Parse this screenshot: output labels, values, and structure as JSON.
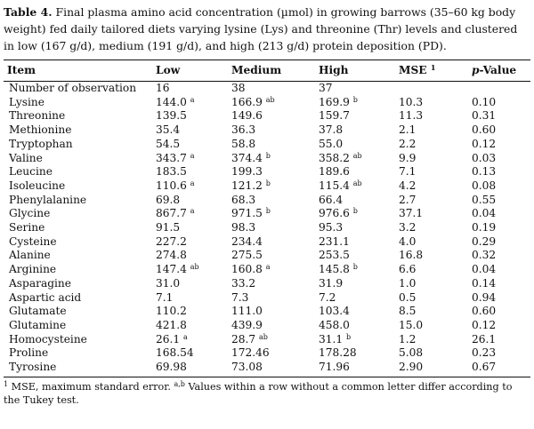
{
  "caption": {
    "label": "Table 4.",
    "text": " Final plasma amino acid concentration (µmol) in growing barrows (35–60 kg body weight) fed daily tailored diets varying lysine (Lys) and threonine (Thr) levels and clustered in low (167 g/d), medium (191 g/d), and high (213 g/d) protein deposition (PD)."
  },
  "headers": {
    "item": "Item",
    "low": "Low",
    "medium": "Medium",
    "high": "High",
    "mse": "MSE",
    "mse_sup": "1",
    "p_italic": "p",
    "p_rest": "-Value"
  },
  "rows": [
    {
      "item": "Number of observation",
      "low": "16",
      "low_sup": "",
      "med": "38",
      "med_sup": "",
      "high": "37",
      "high_sup": "",
      "mse": "",
      "p": ""
    },
    {
      "item": "Lysine",
      "low": "144.0",
      "low_sup": "a",
      "med": "166.9",
      "med_sup": "ab",
      "high": "169.9",
      "high_sup": "b",
      "mse": "10.3",
      "p": "0.10"
    },
    {
      "item": "Threonine",
      "low": "139.5",
      "low_sup": "",
      "med": "149.6",
      "med_sup": "",
      "high": "159.7",
      "high_sup": "",
      "mse": "11.3",
      "p": "0.31"
    },
    {
      "item": "Methionine",
      "low": "35.4",
      "low_sup": "",
      "med": "36.3",
      "med_sup": "",
      "high": "37.8",
      "high_sup": "",
      "mse": "2.1",
      "p": "0.60"
    },
    {
      "item": "Tryptophan",
      "low": "54.5",
      "low_sup": "",
      "med": "58.8",
      "med_sup": "",
      "high": "55.0",
      "high_sup": "",
      "mse": "2.2",
      "p": "0.12"
    },
    {
      "item": "Valine",
      "low": "343.7",
      "low_sup": "a",
      "med": "374.4",
      "med_sup": "b",
      "high": "358.2",
      "high_sup": "ab",
      "mse": "9.9",
      "p": "0.03"
    },
    {
      "item": "Leucine",
      "low": "183.5",
      "low_sup": "",
      "med": "199.3",
      "med_sup": "",
      "high": "189.6",
      "high_sup": "",
      "mse": "7.1",
      "p": "0.13"
    },
    {
      "item": "Isoleucine",
      "low": "110.6",
      "low_sup": "a",
      "med": "121.2",
      "med_sup": "b",
      "high": "115.4",
      "high_sup": "ab",
      "mse": "4.2",
      "p": "0.08"
    },
    {
      "item": "Phenylalanine",
      "low": "69.8",
      "low_sup": "",
      "med": "68.3",
      "med_sup": "",
      "high": "66.4",
      "high_sup": "",
      "mse": "2.7",
      "p": "0.55"
    },
    {
      "item": "Glycine",
      "low": "867.7",
      "low_sup": "a",
      "med": "971.5",
      "med_sup": "b",
      "high": "976.6",
      "high_sup": "b",
      "mse": "37.1",
      "p": "0.04"
    },
    {
      "item": "Serine",
      "low": "91.5",
      "low_sup": "",
      "med": "98.3",
      "med_sup": "",
      "high": "95.3",
      "high_sup": "",
      "mse": "3.2",
      "p": "0.19"
    },
    {
      "item": "Cysteine",
      "low": "227.2",
      "low_sup": "",
      "med": "234.4",
      "med_sup": "",
      "high": "231.1",
      "high_sup": "",
      "mse": "4.0",
      "p": "0.29"
    },
    {
      "item": "Alanine",
      "low": "274.8",
      "low_sup": "",
      "med": "275.5",
      "med_sup": "",
      "high": "253.5",
      "high_sup": "",
      "mse": "16.8",
      "p": "0.32"
    },
    {
      "item": "Arginine",
      "low": "147.4",
      "low_sup": "ab",
      "med": "160.8",
      "med_sup": "a",
      "high": "145.8",
      "high_sup": "b",
      "mse": "6.6",
      "p": "0.04"
    },
    {
      "item": "Asparagine",
      "low": "31.0",
      "low_sup": "",
      "med": "33.2",
      "med_sup": "",
      "high": "31.9",
      "high_sup": "",
      "mse": "1.0",
      "p": "0.14"
    },
    {
      "item": "Aspartic acid",
      "low": "7.1",
      "low_sup": "",
      "med": "7.3",
      "med_sup": "",
      "high": "7.2",
      "high_sup": "",
      "mse": "0.5",
      "p": "0.94"
    },
    {
      "item": "Glutamate",
      "low": "110.2",
      "low_sup": "",
      "med": "111.0",
      "med_sup": "",
      "high": "103.4",
      "high_sup": "",
      "mse": "8.5",
      "p": "0.60"
    },
    {
      "item": "Glutamine",
      "low": "421.8",
      "low_sup": "",
      "med": "439.9",
      "med_sup": "",
      "high": "458.0",
      "high_sup": "",
      "mse": "15.0",
      "p": "0.12"
    },
    {
      "item": "Homocysteine",
      "low": "26.1",
      "low_sup": "a",
      "med": "28.7",
      "med_sup": "ab",
      "high": "31.1",
      "high_sup": "b",
      "mse": "1.2",
      "p": "26.1"
    },
    {
      "item": "Proline",
      "low": "168.54",
      "low_sup": "",
      "med": "172.46",
      "med_sup": "",
      "high": "178.28",
      "high_sup": "",
      "mse": "5.08",
      "p": "0.23"
    },
    {
      "item": "Tyrosine",
      "low": "69.98",
      "low_sup": "",
      "med": "73.08",
      "med_sup": "",
      "high": "71.96",
      "high_sup": "",
      "mse": "2.90",
      "p": "0.67"
    }
  ],
  "footnote": {
    "sup1": "1",
    "text1": " MSE, maximum standard error. ",
    "sup2": "a,b",
    "text2": " Values within a row without a common letter differ according to the Tukey test."
  }
}
